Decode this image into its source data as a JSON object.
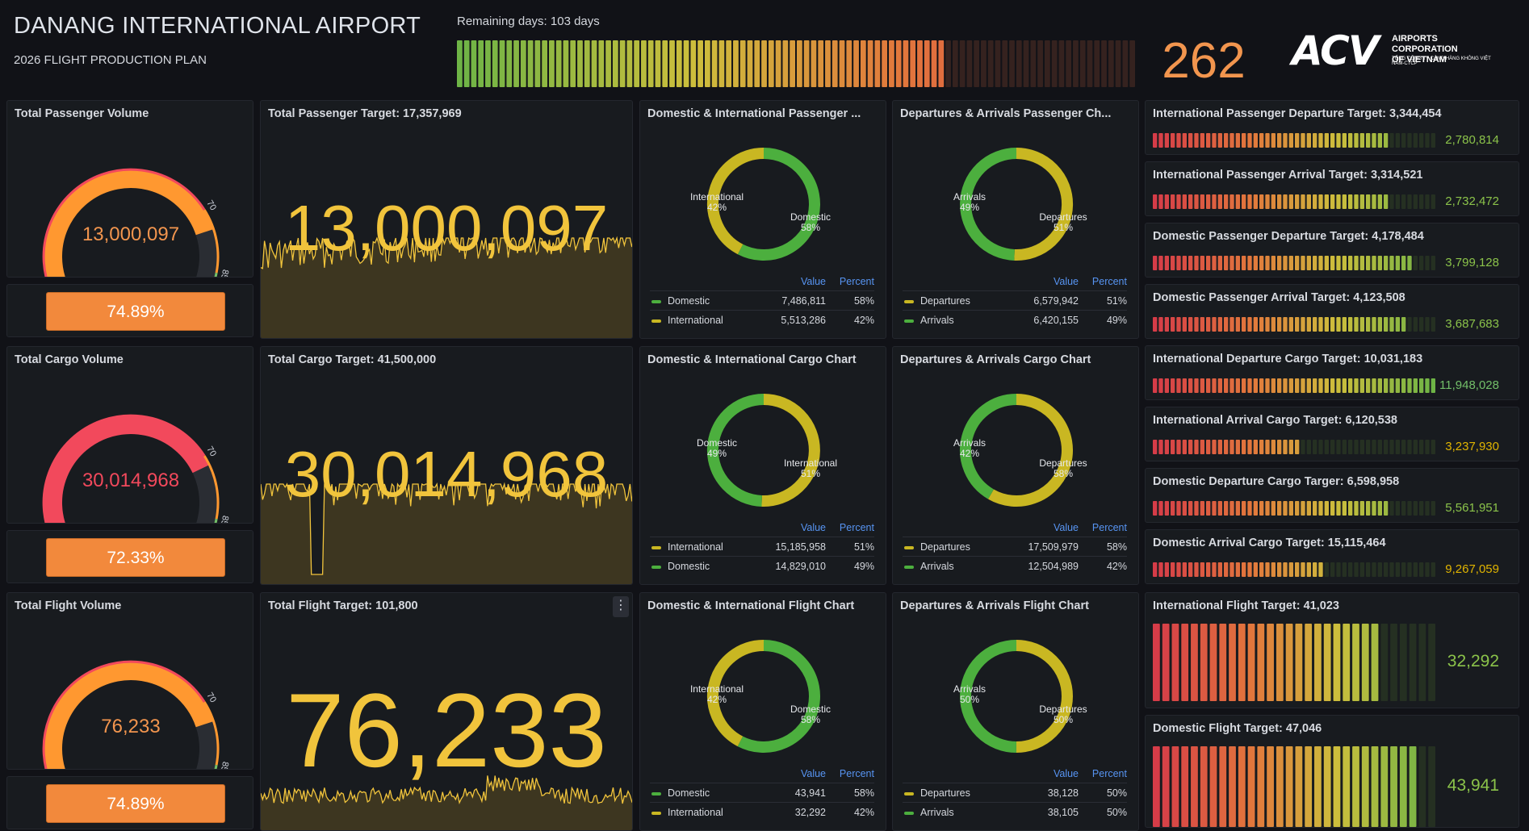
{
  "header": {
    "title": "DANANG INTERNATIONAL AIRPORT",
    "subtitle": "2026 FLIGHT PRODUCTION PLAN",
    "remaining_label": "Remaining days: 103 days",
    "days_count": "262",
    "days_progress": 0.72,
    "logo_mark": "ACV",
    "logo_line1": "AIRPORTS CORPORATION",
    "logo_line2": "OF VIETNAM",
    "logo_line3": "TỔNG CÔNG TY CẢNG HÀNG KHÔNG VIỆT NAM-CTCP"
  },
  "colors": {
    "green": "#4caf3e",
    "yellow": "#c9b722",
    "orange": "#f2893c",
    "red": "#f2495c",
    "number_yellow": "#f1c43c",
    "value_green": "#8bc34a",
    "blue_header": "#5794f2"
  },
  "gauges": [
    {
      "title": "Total Passenger Volume",
      "value_text": "13,000,097",
      "percent": 74.89,
      "percent_text": "74.89%",
      "arc_color": "#ff9830",
      "text_color": "#f2954e",
      "tick_labels": [
        "0",
        "70",
        "85",
        "100"
      ]
    },
    {
      "title": "Total Cargo Volume",
      "value_text": "30,014,968",
      "percent": 72.33,
      "percent_text": "72.33%",
      "arc_color": "#f2495c",
      "text_color": "#f2495c",
      "tick_labels": [
        "0",
        "70",
        "85",
        "100"
      ]
    },
    {
      "title": "Total Flight Volume",
      "value_text": "76,233",
      "percent": 74.89,
      "percent_text": "74.89%",
      "arc_color": "#ff9830",
      "text_color": "#f2954e",
      "tick_labels": [
        "0",
        "70",
        "85",
        "100"
      ]
    }
  ],
  "stats": [
    {
      "title": "Total Passenger Target: 17,357,969",
      "value_text": "13,000,097"
    },
    {
      "title": "Total Cargo Target: 41,500,000",
      "value_text": "30,014,968"
    },
    {
      "title": "Total Flight Target: 101,800",
      "value_text": "76,233"
    }
  ],
  "table_headers": {
    "value": "Value",
    "percent": "Percent"
  },
  "chart_data": [
    {
      "type": "pie",
      "title": "Domestic & International Passenger ...",
      "donut": true,
      "slices": [
        {
          "name": "Domestic",
          "value": 7486811,
          "value_text": "7,486,811",
          "percent_text": "58%",
          "color": "#4caf3e"
        },
        {
          "name": "International",
          "value": 5513286,
          "value_text": "5,513,286",
          "percent_text": "42%",
          "color": "#c9b722"
        }
      ],
      "labels": [
        {
          "name": "International",
          "pct": "42%"
        },
        {
          "name": "Domestic",
          "pct": "58%"
        }
      ]
    },
    {
      "type": "pie",
      "title": "Departures & Arrivals Passenger Ch...",
      "donut": true,
      "slices": [
        {
          "name": "Departures",
          "value": 6579942,
          "value_text": "6,579,942",
          "percent_text": "51%",
          "color": "#c9b722"
        },
        {
          "name": "Arrivals",
          "value": 6420155,
          "value_text": "6,420,155",
          "percent_text": "49%",
          "color": "#4caf3e"
        }
      ],
      "labels": [
        {
          "name": "Arrivals",
          "pct": "49%"
        },
        {
          "name": "Departures",
          "pct": "51%"
        }
      ]
    },
    {
      "type": "pie",
      "title": "Domestic & International Cargo Chart",
      "donut": true,
      "slices": [
        {
          "name": "International",
          "value": 15185958,
          "value_text": "15,185,958",
          "percent_text": "51%",
          "color": "#c9b722"
        },
        {
          "name": "Domestic",
          "value": 14829010,
          "value_text": "14,829,010",
          "percent_text": "49%",
          "color": "#4caf3e"
        }
      ],
      "labels": [
        {
          "name": "Domestic",
          "pct": "49%"
        },
        {
          "name": "International",
          "pct": "51%"
        }
      ]
    },
    {
      "type": "pie",
      "title": "Departures & Arrivals Cargo Chart",
      "donut": true,
      "slices": [
        {
          "name": "Departures",
          "value": 17509979,
          "value_text": "17,509,979",
          "percent_text": "58%",
          "color": "#c9b722"
        },
        {
          "name": "Arrivals",
          "value": 12504989,
          "value_text": "12,504,989",
          "percent_text": "42%",
          "color": "#4caf3e"
        }
      ],
      "labels": [
        {
          "name": "Arrivals",
          "pct": "42%"
        },
        {
          "name": "Departures",
          "pct": "58%"
        }
      ]
    },
    {
      "type": "pie",
      "title": "Domestic & International Flight Chart",
      "donut": true,
      "slices": [
        {
          "name": "Domestic",
          "value": 43941,
          "value_text": "43,941",
          "percent_text": "58%",
          "color": "#4caf3e"
        },
        {
          "name": "International",
          "value": 32292,
          "value_text": "32,292",
          "percent_text": "42%",
          "color": "#c9b722"
        }
      ],
      "labels": [
        {
          "name": "International",
          "pct": "42%"
        },
        {
          "name": "Domestic",
          "pct": "58%"
        }
      ]
    },
    {
      "type": "pie",
      "title": "Departures & Arrivals Flight Chart",
      "donut": true,
      "slices": [
        {
          "name": "Departures",
          "value": 38128,
          "value_text": "38,128",
          "percent_text": "50%",
          "color": "#c9b722"
        },
        {
          "name": "Arrivals",
          "value": 38105,
          "value_text": "38,105",
          "percent_text": "50%",
          "color": "#4caf3e"
        }
      ],
      "labels": [
        {
          "name": "Arrivals",
          "pct": "50%"
        },
        {
          "name": "Departures",
          "pct": "50%"
        }
      ]
    }
  ],
  "targets": [
    {
      "title": "International Passenger Departure Target: 3,344,454",
      "value_text": "2,780,814",
      "fraction": 0.831,
      "value_color": "#8bc34a"
    },
    {
      "title": "International Passenger Arrival Target: 3,314,521",
      "value_text": "2,732,472",
      "fraction": 0.824,
      "value_color": "#8bc34a"
    },
    {
      "title": "Domestic Passenger Departure Target: 4,178,484",
      "value_text": "3,799,128",
      "fraction": 0.909,
      "value_color": "#8bc34a"
    },
    {
      "title": "Domestic Passenger Arrival Target: 4,123,508",
      "value_text": "3,687,683",
      "fraction": 0.894,
      "value_color": "#8bc34a"
    },
    {
      "title": "International Departure Cargo Target: 10,031,183",
      "value_text": "11,948,028",
      "fraction": 1.0,
      "value_color": "#73bf69"
    },
    {
      "title": "International Arrival Cargo Target: 6,120,538",
      "value_text": "3,237,930",
      "fraction": 0.529,
      "value_color": "#e0b400"
    },
    {
      "title": "Domestic Departure Cargo Targer: 6,598,958",
      "value_text": "5,561,951",
      "fraction": 0.843,
      "value_color": "#8bc34a"
    },
    {
      "title": "Domestic Arrival Cargo Target: 15,115,464",
      "value_text": "9,267,059",
      "fraction": 0.613,
      "value_color": "#e0b400"
    },
    {
      "title": "International Flight Target: 41,023",
      "value_text": "32,292",
      "fraction": 0.787,
      "value_color": "#8bc34a"
    },
    {
      "title": "Domestic Flight Target: 47,046",
      "value_text": "43,941",
      "fraction": 0.934,
      "value_color": "#8bc34a"
    }
  ]
}
